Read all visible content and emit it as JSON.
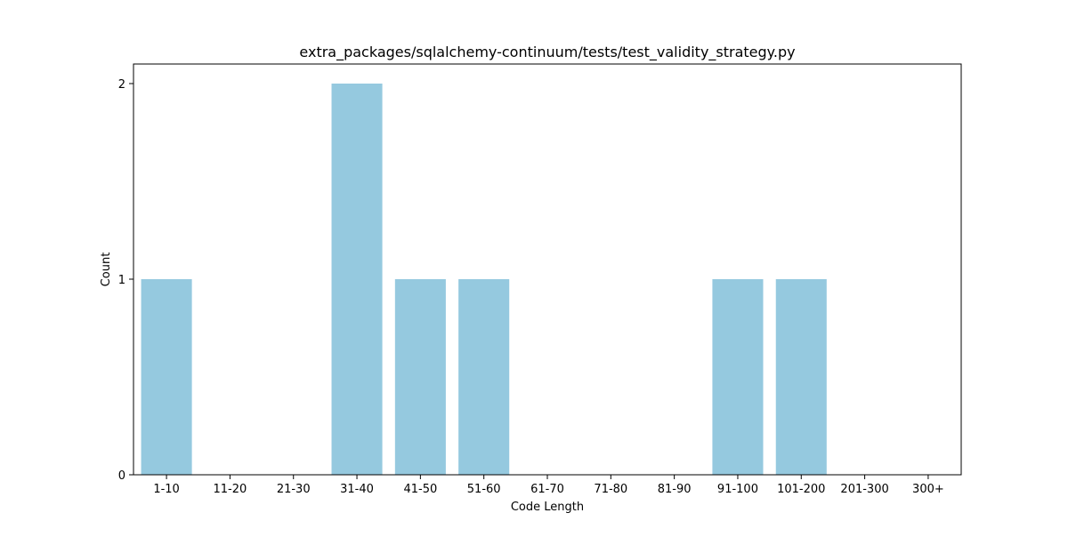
{
  "chart_data": {
    "type": "bar",
    "title": "extra_packages/sqlalchemy-continuum/tests/test_validity_strategy.py",
    "xlabel": "Code Length",
    "ylabel": "Count",
    "categories": [
      "1-10",
      "11-20",
      "21-30",
      "31-40",
      "41-50",
      "51-60",
      "61-70",
      "71-80",
      "81-90",
      "91-100",
      "101-200",
      "201-300",
      "300+"
    ],
    "values": [
      1,
      0,
      0,
      2,
      1,
      1,
      0,
      0,
      0,
      1,
      1,
      0,
      0
    ],
    "ylim": [
      0,
      2.1
    ],
    "yticks": [
      0,
      1,
      2
    ],
    "grid": false,
    "legend": "none",
    "bar_color": "#95c9df"
  }
}
